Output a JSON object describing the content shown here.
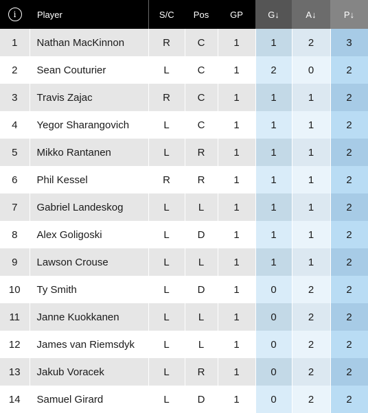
{
  "header": {
    "info_glyph": "i",
    "columns": {
      "player": "Player",
      "sc": "S/C",
      "pos": "Pos",
      "gp": "GP",
      "g": "G↓",
      "a": "A↓",
      "p": "P↓"
    }
  },
  "rows": [
    {
      "rank": "1",
      "player": "Nathan MacKinnon",
      "sc": "R",
      "pos": "C",
      "gp": "1",
      "g": "1",
      "a": "2",
      "p": "3"
    },
    {
      "rank": "2",
      "player": "Sean Couturier",
      "sc": "L",
      "pos": "C",
      "gp": "1",
      "g": "2",
      "a": "0",
      "p": "2"
    },
    {
      "rank": "3",
      "player": "Travis Zajac",
      "sc": "R",
      "pos": "C",
      "gp": "1",
      "g": "1",
      "a": "1",
      "p": "2"
    },
    {
      "rank": "4",
      "player": "Yegor Sharangovich",
      "sc": "L",
      "pos": "C",
      "gp": "1",
      "g": "1",
      "a": "1",
      "p": "2"
    },
    {
      "rank": "5",
      "player": "Mikko Rantanen",
      "sc": "L",
      "pos": "R",
      "gp": "1",
      "g": "1",
      "a": "1",
      "p": "2"
    },
    {
      "rank": "6",
      "player": "Phil Kessel",
      "sc": "R",
      "pos": "R",
      "gp": "1",
      "g": "1",
      "a": "1",
      "p": "2"
    },
    {
      "rank": "7",
      "player": "Gabriel Landeskog",
      "sc": "L",
      "pos": "L",
      "gp": "1",
      "g": "1",
      "a": "1",
      "p": "2"
    },
    {
      "rank": "8",
      "player": "Alex Goligoski",
      "sc": "L",
      "pos": "D",
      "gp": "1",
      "g": "1",
      "a": "1",
      "p": "2"
    },
    {
      "rank": "9",
      "player": "Lawson Crouse",
      "sc": "L",
      "pos": "L",
      "gp": "1",
      "g": "1",
      "a": "1",
      "p": "2"
    },
    {
      "rank": "10",
      "player": "Ty Smith",
      "sc": "L",
      "pos": "D",
      "gp": "1",
      "g": "0",
      "a": "2",
      "p": "2"
    },
    {
      "rank": "11",
      "player": "Janne Kuokkanen",
      "sc": "L",
      "pos": "L",
      "gp": "1",
      "g": "0",
      "a": "2",
      "p": "2"
    },
    {
      "rank": "12",
      "player": "James van Riemsdyk",
      "sc": "L",
      "pos": "L",
      "gp": "1",
      "g": "0",
      "a": "2",
      "p": "2"
    },
    {
      "rank": "13",
      "player": "Jakub Voracek",
      "sc": "L",
      "pos": "R",
      "gp": "1",
      "g": "0",
      "a": "2",
      "p": "2"
    },
    {
      "rank": "14",
      "player": "Samuel Girard",
      "sc": "L",
      "pos": "D",
      "gp": "1",
      "g": "0",
      "a": "2",
      "p": "2"
    }
  ]
}
